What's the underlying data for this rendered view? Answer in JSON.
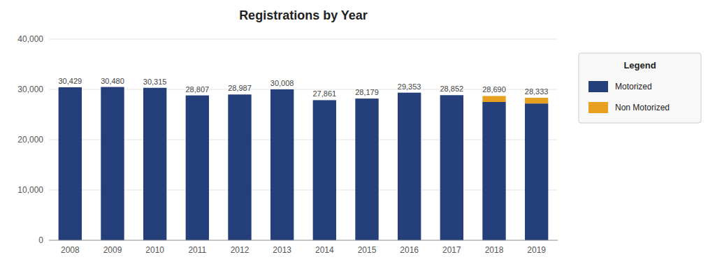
{
  "chart_data": {
    "type": "bar",
    "title": "Registrations by Year",
    "categories": [
      "2008",
      "2009",
      "2010",
      "2011",
      "2012",
      "2013",
      "2014",
      "2015",
      "2016",
      "2017",
      "2018",
      "2019"
    ],
    "series": [
      {
        "name": "Motorized",
        "color": "#243F7A",
        "values": [
          30429,
          30480,
          30315,
          28807,
          28987,
          30008,
          27861,
          28179,
          29353,
          28852,
          27500,
          27200
        ]
      },
      {
        "name": "Non Motorized",
        "color": "#E8A020",
        "values": [
          0,
          0,
          0,
          0,
          0,
          0,
          0,
          0,
          0,
          0,
          1190,
          1133
        ]
      }
    ],
    "totals": [
      30429,
      30480,
      30315,
      28807,
      28987,
      30008,
      27861,
      28179,
      29353,
      28852,
      28690,
      28333
    ],
    "total_labels": [
      "30,429",
      "30,480",
      "30,315",
      "28,807",
      "28,987",
      "30,008",
      "27,861",
      "28,179",
      "29,353",
      "28,852",
      "28,690",
      "28,333"
    ],
    "stacked": true,
    "ylim": [
      0,
      40000
    ],
    "yticks": [
      0,
      {
        "value": 10000,
        "label": "10,000"
      },
      {
        "value": 20000,
        "label": "20,000"
      },
      {
        "value": 30000,
        "label": "30,000"
      },
      {
        "value": 40000,
        "label": "40,000"
      }
    ],
    "grid": true,
    "legend": "right",
    "legend_title": "Legend"
  }
}
